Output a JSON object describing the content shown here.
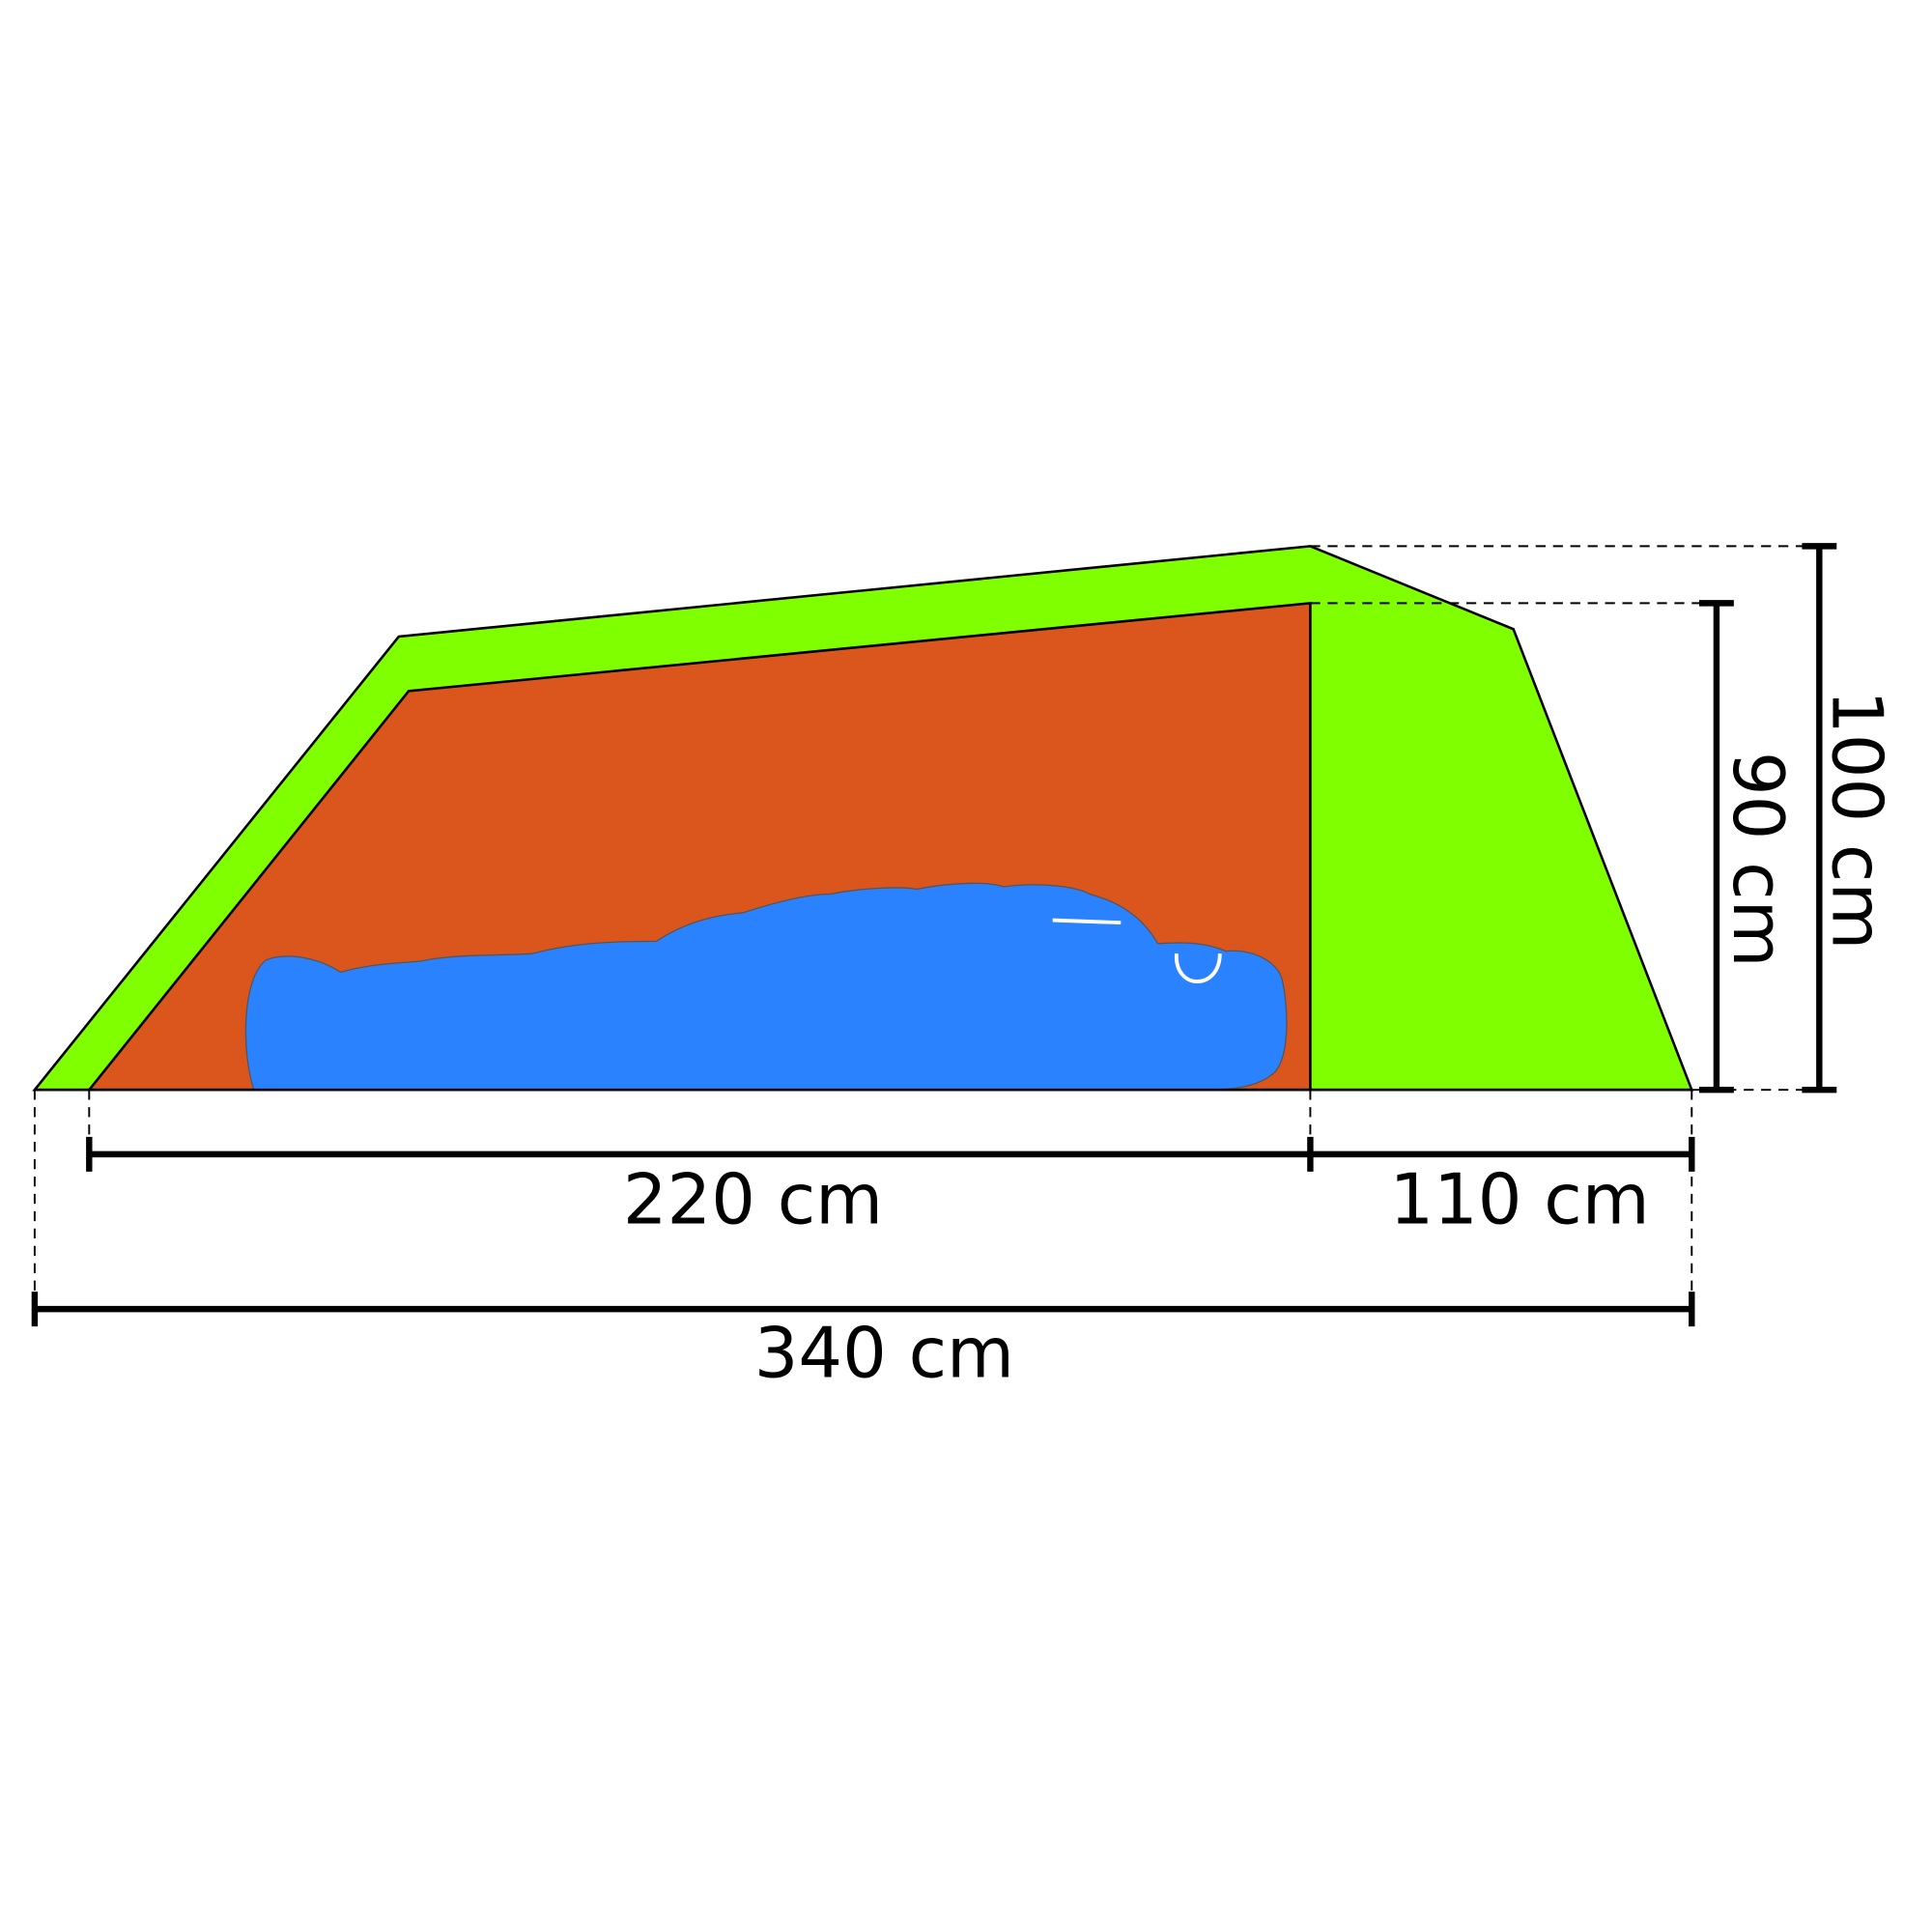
{
  "dimensions": {
    "inner_length": "220 cm",
    "vestibule_length": "110 cm",
    "total_length": "340 cm",
    "inner_height": "90 cm",
    "total_height": "100 cm"
  }
}
